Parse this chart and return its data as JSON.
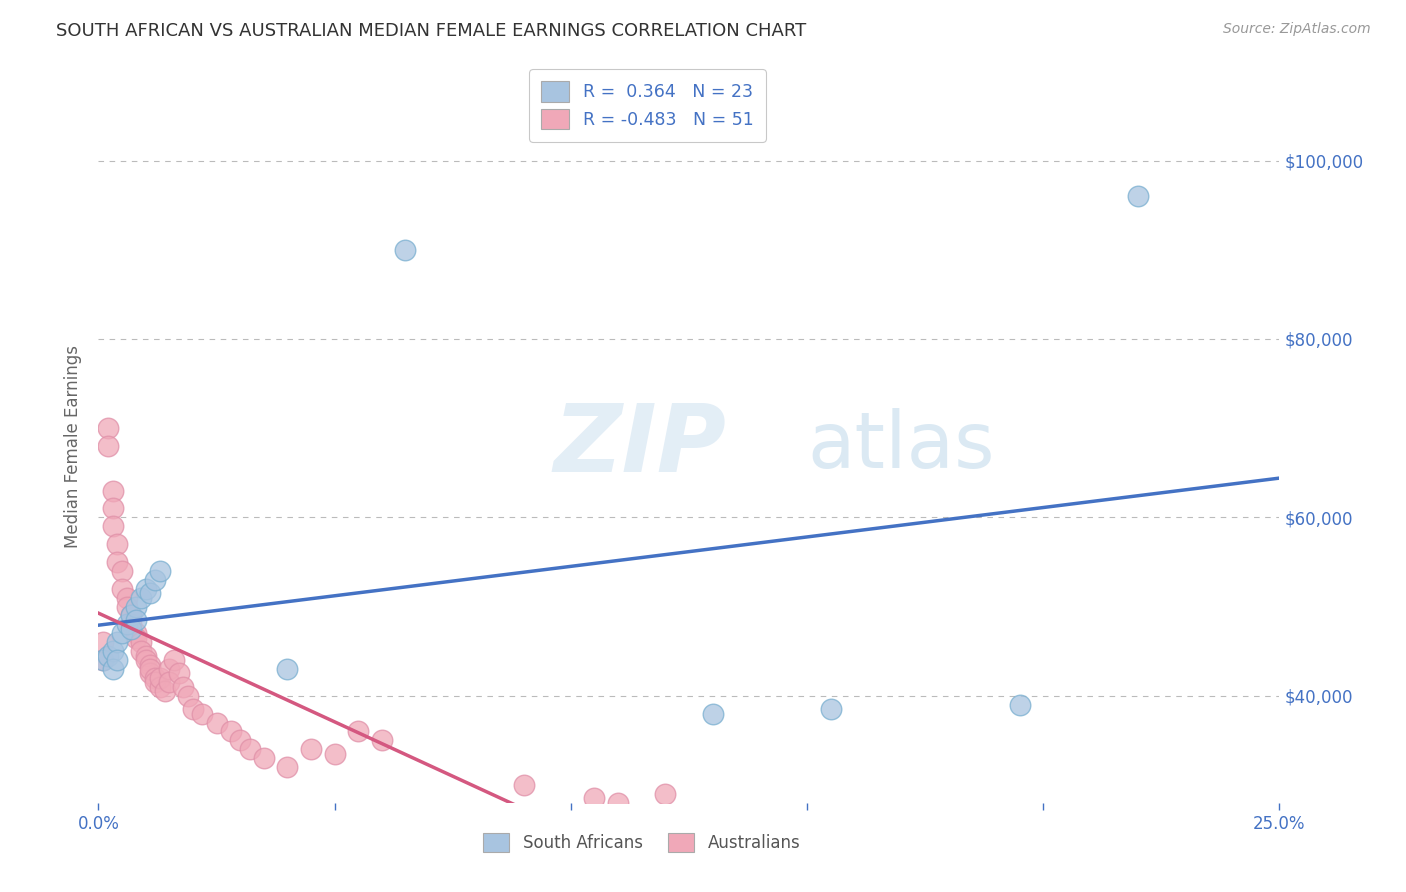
{
  "title": "SOUTH AFRICAN VS AUSTRALIAN MEDIAN FEMALE EARNINGS CORRELATION CHART",
  "source": "Source: ZipAtlas.com",
  "ylabel": "Median Female Earnings",
  "xlim": [
    0.0,
    0.25
  ],
  "ylim": [
    28000,
    108000
  ],
  "ytick_positions": [
    40000,
    60000,
    80000,
    100000
  ],
  "ytick_labels": [
    "$40,000",
    "$60,000",
    "$80,000",
    "$100,000"
  ],
  "xtick_positions": [
    0.0,
    0.05,
    0.1,
    0.15,
    0.2,
    0.25
  ],
  "xtick_labels": [
    "0.0%",
    "",
    "",
    "",
    "",
    "25.0%"
  ],
  "blue_R": 0.364,
  "blue_N": 23,
  "pink_R": -0.483,
  "pink_N": 51,
  "blue_color": "#a8c4e0",
  "pink_color": "#f0a8b8",
  "blue_edge_color": "#7aafd0",
  "pink_edge_color": "#e090a8",
  "blue_line_color": "#4472c4",
  "pink_line_color": "#d45880",
  "legend_label_blue": "South Africans",
  "legend_label_pink": "Australians",
  "background_color": "#ffffff",
  "grid_color": "#bbbbbb",
  "title_color": "#333333",
  "axis_label_color": "#4472c4",
  "ylabel_color": "#666666",
  "watermark_zip_color": "#c8ddf0",
  "watermark_atlas_color": "#c0d8e8",
  "source_color": "#999999",
  "blue_x": [
    0.001,
    0.002,
    0.003,
    0.003,
    0.004,
    0.004,
    0.005,
    0.006,
    0.007,
    0.007,
    0.008,
    0.008,
    0.009,
    0.01,
    0.011,
    0.012,
    0.013,
    0.04,
    0.065,
    0.13,
    0.155,
    0.195,
    0.22
  ],
  "blue_y": [
    44000,
    44500,
    45000,
    43000,
    46000,
    44000,
    47000,
    48000,
    49000,
    47500,
    50000,
    48500,
    51000,
    52000,
    51500,
    53000,
    54000,
    43000,
    90000,
    38000,
    38500,
    39000,
    96000
  ],
  "pink_x": [
    0.001,
    0.001,
    0.002,
    0.002,
    0.003,
    0.003,
    0.003,
    0.004,
    0.004,
    0.005,
    0.005,
    0.006,
    0.006,
    0.007,
    0.007,
    0.008,
    0.008,
    0.009,
    0.009,
    0.01,
    0.01,
    0.011,
    0.011,
    0.011,
    0.012,
    0.012,
    0.013,
    0.013,
    0.014,
    0.015,
    0.015,
    0.016,
    0.017,
    0.018,
    0.019,
    0.02,
    0.022,
    0.025,
    0.028,
    0.03,
    0.032,
    0.035,
    0.04,
    0.045,
    0.05,
    0.055,
    0.06,
    0.09,
    0.105,
    0.11,
    0.12
  ],
  "pink_y": [
    44000,
    46000,
    70000,
    68000,
    63000,
    61000,
    59000,
    57000,
    55000,
    54000,
    52000,
    51000,
    50000,
    49000,
    48000,
    47000,
    46500,
    46000,
    45000,
    44500,
    44000,
    43500,
    42500,
    43000,
    42000,
    41500,
    41000,
    42000,
    40500,
    43000,
    41500,
    44000,
    42500,
    41000,
    40000,
    38500,
    38000,
    37000,
    36000,
    35000,
    34000,
    33000,
    32000,
    34000,
    33500,
    36000,
    35000,
    30000,
    28500,
    28000,
    29000
  ]
}
